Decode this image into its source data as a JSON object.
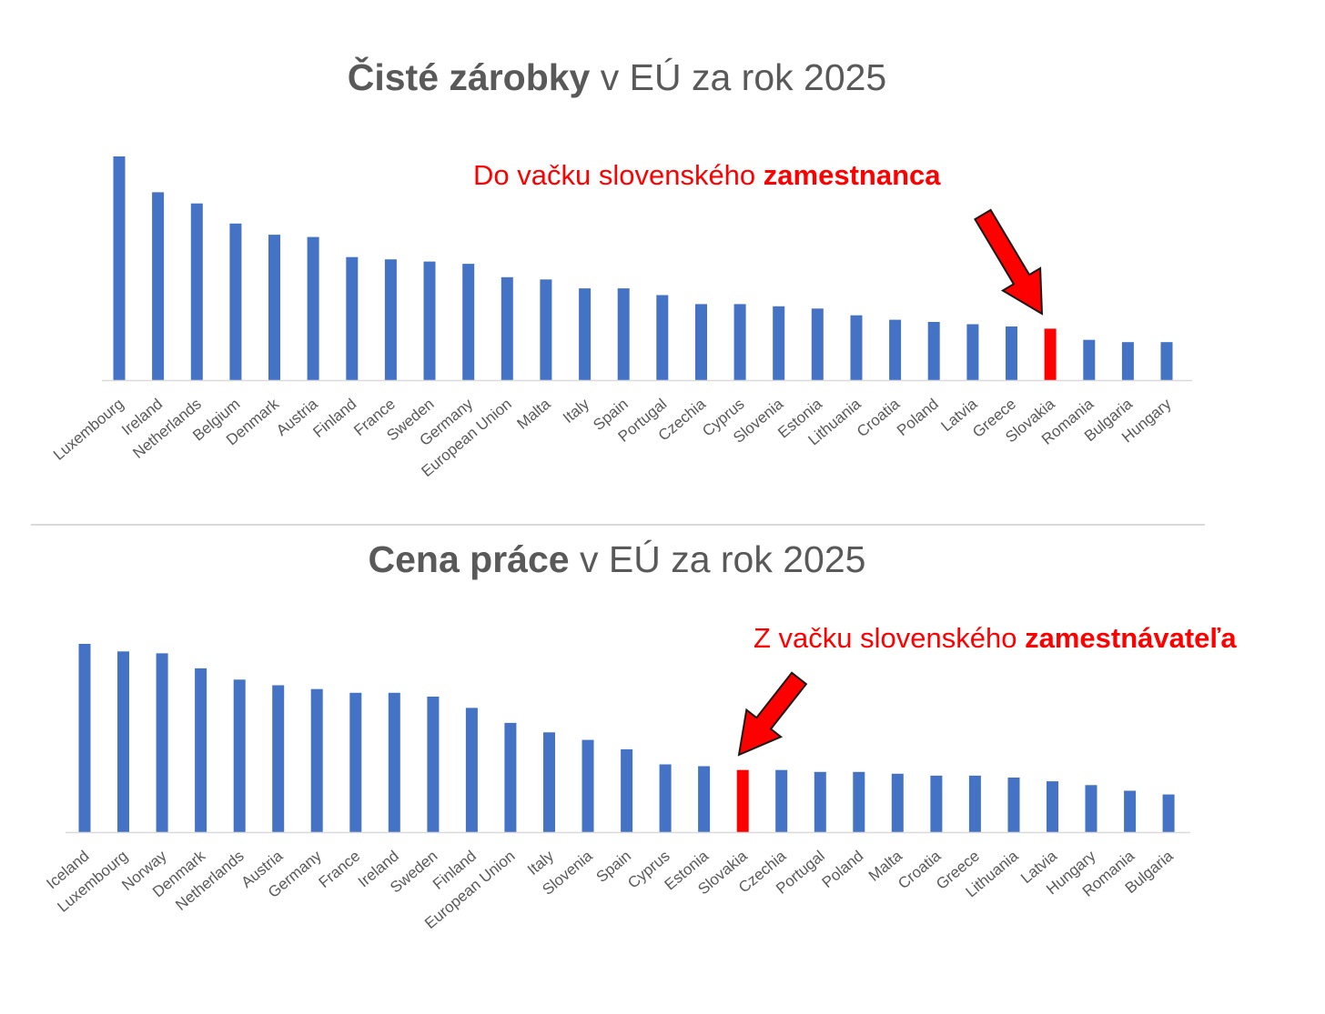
{
  "chart_data": [
    {
      "type": "bar",
      "title_bold": "Čisté zárobky",
      "title_rest": " v EÚ za rok 2025",
      "annotation_normal": "Do vačku slovenského ",
      "annotation_bold": "zamestnanca",
      "highlight": "Slovakia",
      "bar_color": "#4472c4",
      "highlight_color": "#ff0000",
      "categories": [
        "Luxembourg",
        "Ireland",
        "Netherlands",
        "Belgium",
        "Denmark",
        "Austria",
        "Finland",
        "France",
        "Sweden",
        "Germany",
        "European Union",
        "Malta",
        "Italy",
        "Spain",
        "Portugal",
        "Czechia",
        "Cyprus",
        "Slovenia",
        "Estonia",
        "Lithuania",
        "Croatia",
        "Poland",
        "Latvia",
        "Greece",
        "Slovakia",
        "Romania",
        "Bulgaria",
        "Hungary"
      ],
      "values": [
        100,
        84,
        79,
        70,
        65,
        64,
        55,
        54,
        53,
        52,
        46,
        45,
        41,
        41,
        38,
        34,
        34,
        33,
        32,
        29,
        27,
        26,
        25,
        24,
        23,
        18,
        17,
        17
      ],
      "ylim": [
        0,
        100
      ],
      "grid": false
    },
    {
      "type": "bar",
      "title_bold": "Cena práce",
      "title_rest": " v EÚ za rok 2025",
      "annotation_normal": "Z vačku slovenského ",
      "annotation_bold": "zamestnávateľa",
      "highlight": "Slovakia",
      "bar_color": "#4472c4",
      "highlight_color": "#ff0000",
      "categories": [
        "Iceland",
        "Luxembourg",
        "Norway",
        "Denmark",
        "Netherlands",
        "Austria",
        "Germany",
        "France",
        "Ireland",
        "Sweden",
        "Finland",
        "European Union",
        "Italy",
        "Slovenia",
        "Spain",
        "Cyprus",
        "Estonia",
        "Slovakia",
        "Czechia",
        "Portugal",
        "Poland",
        "Malta",
        "Croatia",
        "Greece",
        "Lithuania",
        "Latvia",
        "Hungary",
        "Romania",
        "Bulgaria"
      ],
      "values": [
        100,
        96,
        95,
        87,
        81,
        78,
        76,
        74,
        74,
        72,
        66,
        58,
        53,
        49,
        44,
        36,
        35,
        33,
        33,
        32,
        32,
        31,
        30,
        30,
        29,
        27,
        25,
        22,
        20
      ],
      "ylim": [
        0,
        100
      ],
      "grid": false
    }
  ]
}
